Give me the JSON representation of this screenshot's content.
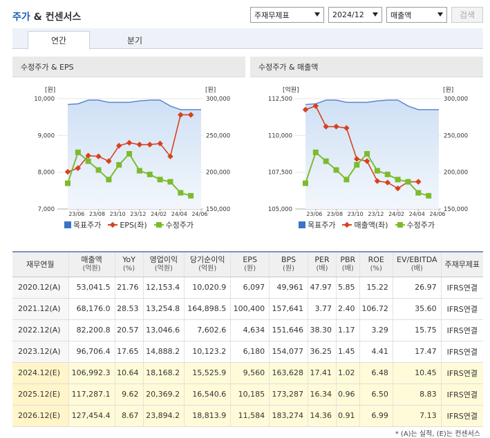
{
  "header": {
    "title_a": "주가",
    "title_b": " & 컨센서스"
  },
  "selects": [
    {
      "label": "주재무제표"
    },
    {
      "label": "2024/12"
    },
    {
      "label": "매출액"
    }
  ],
  "search_button": "검색",
  "tabs": [
    {
      "label": "연간",
      "active": true
    },
    {
      "label": "분기",
      "active": false
    }
  ],
  "charts": {
    "left": {
      "title": "수정주가 & EPS",
      "left_unit": "[원]",
      "right_unit": "[원]",
      "left_ticks": [
        "10,000",
        "9,000",
        "8,000",
        "7,000"
      ],
      "right_ticks": [
        "300,000",
        "250,000",
        "200,000",
        "150,000"
      ],
      "x_ticks": [
        "23/06",
        "23/08",
        "23/10",
        "23/12",
        "24/02",
        "24/04",
        "24/06"
      ],
      "legend": [
        {
          "label": "목표주가",
          "color": "#3a73c9"
        },
        {
          "label": "EPS(좌)",
          "color": "#d6421e"
        },
        {
          "label": "수정주가",
          "color": "#7cbb2c"
        }
      ]
    },
    "right": {
      "title": "수정주가 & 매출액",
      "left_unit": "[억원]",
      "right_unit": "[원]",
      "left_ticks": [
        "112,500",
        "110,000",
        "107,500",
        "105,000"
      ],
      "right_ticks": [
        "300,000",
        "250,000",
        "200,000",
        "150,000"
      ],
      "x_ticks": [
        "23/06",
        "23/08",
        "23/10",
        "23/12",
        "24/02",
        "24/04",
        "24/06"
      ],
      "legend": [
        {
          "label": "목표주가",
          "color": "#3a73c9"
        },
        {
          "label": "매출액(좌)",
          "color": "#d6421e"
        },
        {
          "label": "수정주가",
          "color": "#7cbb2c"
        }
      ]
    }
  },
  "chart_data": [
    {
      "type": "line",
      "title": "수정주가 & EPS",
      "x": [
        "23/05",
        "23/06",
        "23/07",
        "23/08",
        "23/09",
        "23/10",
        "23/11",
        "23/12",
        "24/01",
        "24/02",
        "24/03",
        "24/04",
        "24/05",
        "24/06"
      ],
      "series": [
        {
          "name": "목표주가",
          "axis": "right",
          "values": [
            292000,
            293000,
            298000,
            298000,
            295000,
            295000,
            295000,
            297000,
            298000,
            298000,
            290000,
            285000,
            285000,
            285000
          ]
        },
        {
          "name": "EPS(좌)",
          "axis": "left",
          "values": [
            8010,
            8110,
            8450,
            8430,
            8300,
            8720,
            8800,
            8750,
            8750,
            8780,
            8430,
            9560,
            9560,
            null
          ]
        },
        {
          "name": "수정주가",
          "axis": "right",
          "values": [
            185000,
            227000,
            215000,
            203000,
            190000,
            210000,
            225000,
            202000,
            197000,
            190000,
            187000,
            172000,
            168000,
            null
          ]
        }
      ],
      "ylim_left": [
        7000,
        10000
      ],
      "ylim_right": [
        150000,
        300000
      ]
    },
    {
      "type": "line",
      "title": "수정주가 & 매출액",
      "x": [
        "23/05",
        "23/06",
        "23/07",
        "23/08",
        "23/09",
        "23/10",
        "23/11",
        "23/12",
        "24/01",
        "24/02",
        "24/03",
        "24/04",
        "24/05",
        "24/06"
      ],
      "series": [
        {
          "name": "목표주가",
          "axis": "right",
          "values": [
            292000,
            293000,
            298000,
            298000,
            295000,
            295000,
            295000,
            297000,
            298000,
            298000,
            290000,
            285000,
            285000,
            285000
          ]
        },
        {
          "name": "매출액(좌)",
          "axis": "left",
          "values": [
            111750,
            112000,
            110600,
            110600,
            110500,
            108400,
            108250,
            106900,
            106800,
            106400,
            106850,
            106850,
            null,
            null
          ]
        },
        {
          "name": "수정주가",
          "axis": "right",
          "values": [
            185000,
            227000,
            215000,
            203000,
            190000,
            210000,
            225000,
            202000,
            197000,
            190000,
            187000,
            172000,
            168000,
            null
          ]
        }
      ],
      "ylim_left": [
        105000,
        112500
      ],
      "ylim_right": [
        150000,
        300000
      ]
    }
  ],
  "table": {
    "headers": [
      {
        "main": "재무연월",
        "sub": ""
      },
      {
        "main": "매출액",
        "sub": "(억원)"
      },
      {
        "main": "YoY",
        "sub": "(%)"
      },
      {
        "main": "영업이익",
        "sub": "(억원)"
      },
      {
        "main": "당기순이익",
        "sub": "(억원)"
      },
      {
        "main": "EPS",
        "sub": "(원)"
      },
      {
        "main": "BPS",
        "sub": "(원)"
      },
      {
        "main": "PER",
        "sub": "(배)"
      },
      {
        "main": "PBR",
        "sub": "(배)"
      },
      {
        "main": "ROE",
        "sub": "(%)"
      },
      {
        "main": "EV/EBITDA",
        "sub": "(배)"
      },
      {
        "main": "주재무제표",
        "sub": ""
      }
    ],
    "rows": [
      {
        "est": false,
        "cells": [
          "2020.12(A)",
          "53,041.5",
          "21.76",
          "12,153.4",
          "10,020.9",
          "6,097",
          "49,961",
          "47.97",
          "5.85",
          "15.22",
          "26.97",
          "IFRS연결"
        ]
      },
      {
        "est": false,
        "cells": [
          "2021.12(A)",
          "68,176.0",
          "28.53",
          "13,254.8",
          "164,898.5",
          "100,400",
          "157,641",
          "3.77",
          "2.40",
          "106.72",
          "35.60",
          "IFRS연결"
        ]
      },
      {
        "est": false,
        "cells": [
          "2022.12(A)",
          "82,200.8",
          "20.57",
          "13,046.6",
          "7,602.6",
          "4,634",
          "151,646",
          "38.30",
          "1.17",
          "3.29",
          "15.75",
          "IFRS연결"
        ]
      },
      {
        "est": false,
        "cells": [
          "2023.12(A)",
          "96,706.4",
          "17.65",
          "14,888.2",
          "10,123.2",
          "6,180",
          "154,077",
          "36.25",
          "1.45",
          "4.41",
          "17.47",
          "IFRS연결"
        ]
      },
      {
        "est": true,
        "cells": [
          "2024.12(E)",
          "106,992.3",
          "10.64",
          "18,168.2",
          "15,525.9",
          "9,560",
          "163,628",
          "17.41",
          "1.02",
          "6.48",
          "10.45",
          "IFRS연결"
        ]
      },
      {
        "est": true,
        "cells": [
          "2025.12(E)",
          "117,287.1",
          "9.62",
          "20,369.2",
          "16,540.6",
          "10,185",
          "173,287",
          "16.34",
          "0.96",
          "6.50",
          "8.83",
          "IFRS연결"
        ]
      },
      {
        "est": true,
        "cells": [
          "2026.12(E)",
          "127,454.4",
          "8.67",
          "23,894.2",
          "18,813.9",
          "11,584",
          "183,274",
          "14.36",
          "0.91",
          "6.99",
          "7.13",
          "IFRS연결"
        ]
      }
    ]
  },
  "footnote": "* (A)는 실적, (E)는 컨센서스"
}
